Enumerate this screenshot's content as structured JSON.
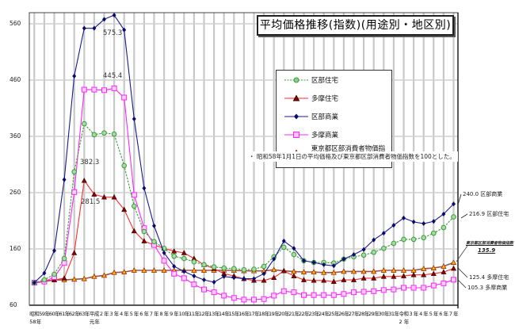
{
  "chart_data": {
    "type": "line",
    "title": "平均価格推移(指数)(用途別・地区別)",
    "note": "・ 昭和58年1月1日の平均価格及び東京都区部消費者物価指数を100とした。",
    "xlabel": "",
    "ylabel": "",
    "ylim": [
      60,
      585
    ],
    "yticks": [
      60,
      160,
      260,
      360,
      460,
      560
    ],
    "grid": true,
    "legend_position": "upper-center",
    "x": [
      "昭和58年",
      "59年",
      "60年",
      "61年",
      "62年",
      "63年",
      "平成元年",
      "2年",
      "3年",
      "4年",
      "5年",
      "6年",
      "7年",
      "8年",
      "9年",
      "10年",
      "11年",
      "12年",
      "13年",
      "14年",
      "15年",
      "16年",
      "17年",
      "18年",
      "19年",
      "20年",
      "21年",
      "22年",
      "23年",
      "24年",
      "25年",
      "26年",
      "27年",
      "28年",
      "29年",
      "30年",
      "31年",
      "令和2年",
      "3年",
      "4年",
      "5年",
      "6年",
      "7年"
    ],
    "series": [
      {
        "name": "区部住宅",
        "color": "#3a9a3a",
        "dashed": true,
        "marker": "circle",
        "values": [
          100,
          105,
          115,
          143,
          297,
          382.3,
          363,
          366,
          364,
          308,
          236,
          191,
          173,
          161,
          147,
          143,
          137,
          132,
          128,
          126,
          125,
          123,
          124,
          129,
          146,
          163,
          150,
          139,
          136,
          136,
          135,
          142,
          146,
          149,
          154,
          161,
          170,
          177,
          177,
          180,
          188,
          198,
          216.9
        ]
      },
      {
        "name": "多摩住宅",
        "color": "#ff2a2a",
        "dashed": false,
        "marker": "triangle",
        "values": [
          100,
          103,
          105,
          108,
          153,
          281.5,
          257,
          252,
          252,
          230,
          192,
          174,
          167,
          161,
          156,
          153,
          143,
          132,
          125,
          116,
          112,
          107,
          104,
          104,
          109,
          121,
          112,
          105,
          104,
          104,
          102,
          105,
          105,
          108,
          108,
          111,
          111,
          112,
          114,
          114,
          116,
          119,
          125.4
        ]
      },
      {
        "name": "区部商業",
        "color": "#1a1a8c",
        "dashed": false,
        "marker": "diamond",
        "values": [
          100,
          117,
          157,
          283,
          467,
          552,
          552,
          568,
          575.3,
          549,
          391,
          268,
          201,
          153,
          129,
          120,
          112,
          105,
          101,
          111,
          109,
          107,
          107,
          116,
          142,
          174,
          161,
          139,
          136,
          132,
          130,
          142,
          150,
          159,
          176,
          188,
          202,
          215,
          208,
          205,
          209,
          222,
          240.0
        ]
      },
      {
        "name": "多摩商業",
        "color": "#ff22ff",
        "dashed": false,
        "marker": "square",
        "values": [
          100,
          102,
          110,
          135,
          261,
          443,
          443,
          442,
          445.4,
          429,
          256,
          197,
          167,
          139,
          116,
          108,
          97,
          88,
          83,
          77,
          73,
          70,
          70,
          71,
          77,
          85,
          83,
          78,
          78,
          78,
          78,
          80,
          83,
          84,
          85,
          87,
          88,
          91,
          91,
          91,
          95,
          99,
          105.3
        ]
      },
      {
        "name": "東京都区部消費者物価指数",
        "color": "#a05050",
        "dashed": false,
        "marker": "triangle-orange",
        "values": [
          100,
          102,
          105,
          105,
          106,
          107,
          111,
          113,
          118,
          119,
          122,
          122,
          122,
          122,
          122,
          122,
          122,
          122,
          122,
          122,
          122,
          121,
          121,
          121,
          123,
          121,
          120,
          119,
          119,
          118,
          118,
          120,
          120,
          120,
          120,
          122,
          122,
          122,
          122,
          125,
          126,
          129,
          135.9
        ]
      }
    ],
    "annotations": [
      {
        "text": "575.3",
        "series": "区部商業",
        "index": 8
      },
      {
        "text": "445.4",
        "series": "多摩商業",
        "index": 8
      },
      {
        "text": "382.3",
        "series": "区部住宅",
        "index": 5
      },
      {
        "text": "281.5",
        "series": "多摩住宅",
        "index": 5
      },
      {
        "text": "240.0 区部商業",
        "series": "区部商業",
        "index": 42
      },
      {
        "text": "216.9 区部住宅",
        "series": "区部住宅",
        "index": 42
      },
      {
        "text": "東京都区部消費者物価指数",
        "sub": "135.9",
        "series": "東京都区部消費者物価指数",
        "index": 42
      },
      {
        "text": "125.4 多摩住宅",
        "series": "多摩住宅",
        "index": 42
      },
      {
        "text": "105.3 多摩商業",
        "series": "多摩商業",
        "index": 42
      }
    ]
  },
  "legend": {
    "items": [
      {
        "label": "区部住宅"
      },
      {
        "label": "多摩住宅"
      },
      {
        "label": "区部商業"
      },
      {
        "label": "多摩商業"
      },
      {
        "label": "東京都区部消費者物価指数"
      }
    ]
  },
  "x_tick_labels": [
    "昭和",
    "59年",
    "60年",
    "61年",
    "62年",
    "63年",
    "平成",
    "2 年",
    "3 年",
    "4 年",
    "5 年",
    "6 年",
    "7 年",
    "8 年",
    "9 年",
    "10年",
    "11年",
    "12年",
    "13年",
    "14年",
    "15年",
    "16年",
    "17年",
    "18年",
    "19年",
    "20年",
    "21年",
    "22年",
    "23年",
    "24年",
    "25年",
    "26年",
    "27年",
    "28年",
    "29年",
    "30年",
    "31年",
    "令和",
    "3 年",
    "4 年",
    "5 年",
    "6 年",
    "7 年"
  ],
  "x_sub_labels": [
    {
      "index": 0,
      "text": "58年"
    },
    {
      "index": 6,
      "text": "元年"
    },
    {
      "index": 37,
      "text": "2 年"
    }
  ]
}
